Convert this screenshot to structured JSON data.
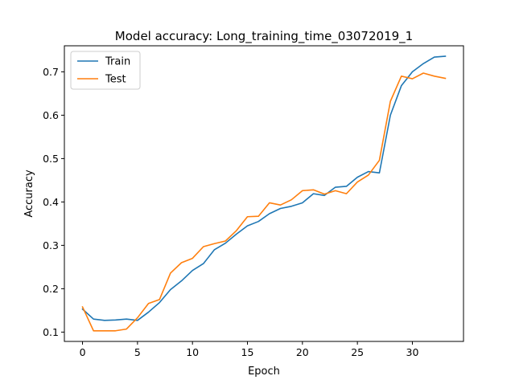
{
  "chart_data": {
    "type": "line",
    "title": "Model accuracy: Long_training_time_03072019_1",
    "xlabel": "Epoch",
    "ylabel": "Accuracy",
    "xlim": [
      -1.65,
      34.65
    ],
    "ylim": [
      0.0785,
      0.76
    ],
    "xticks": [
      0,
      5,
      10,
      15,
      20,
      25,
      30
    ],
    "yticks": [
      0.1,
      0.2,
      0.3,
      0.4,
      0.5,
      0.6,
      0.7
    ],
    "ytick_labels": [
      "0.1",
      "0.2",
      "0.3",
      "0.4",
      "0.5",
      "0.6",
      "0.7"
    ],
    "legend": "upper-left",
    "grid": false,
    "x": [
      0,
      1,
      2,
      3,
      4,
      5,
      6,
      7,
      8,
      9,
      10,
      11,
      12,
      13,
      14,
      15,
      16,
      17,
      18,
      19,
      20,
      21,
      22,
      23,
      24,
      25,
      26,
      27,
      28,
      29,
      30,
      31,
      32,
      33
    ],
    "series": [
      {
        "name": "Train",
        "color": "#1f77b4",
        "values": [
          0.153,
          0.13,
          0.127,
          0.128,
          0.13,
          0.127,
          0.146,
          0.168,
          0.198,
          0.218,
          0.242,
          0.258,
          0.29,
          0.305,
          0.326,
          0.345,
          0.355,
          0.373,
          0.385,
          0.39,
          0.398,
          0.419,
          0.415,
          0.434,
          0.436,
          0.457,
          0.47,
          0.467,
          0.6,
          0.668,
          0.7,
          0.719,
          0.734,
          0.736
        ]
      },
      {
        "name": "Test",
        "color": "#ff7f0e",
        "values": [
          0.158,
          0.103,
          0.103,
          0.103,
          0.107,
          0.133,
          0.166,
          0.175,
          0.236,
          0.26,
          0.27,
          0.297,
          0.304,
          0.31,
          0.334,
          0.366,
          0.367,
          0.398,
          0.393,
          0.405,
          0.426,
          0.428,
          0.418,
          0.426,
          0.419,
          0.446,
          0.462,
          0.496,
          0.632,
          0.69,
          0.684,
          0.697,
          0.69,
          0.685
        ]
      }
    ]
  }
}
